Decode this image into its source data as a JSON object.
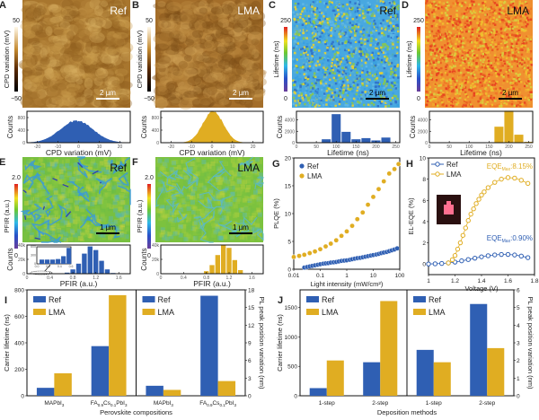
{
  "panels": {
    "A": {
      "letter": "A",
      "label": "Ref",
      "scalebar": "2 µm",
      "cbar_label": "CPD variation (mV)",
      "cbar_max": "50",
      "cbar_min": "−50",
      "palette": "afm"
    },
    "B": {
      "letter": "B",
      "label": "LMA",
      "scalebar": "2 µm",
      "cbar_label": "CPD variation (mV)",
      "cbar_max": "50",
      "cbar_min": "−50",
      "palette": "afm"
    },
    "C": {
      "letter": "C",
      "label": "Ref",
      "scalebar": "2 µm",
      "cbar_label": "Lifetime (ns)",
      "cbar_max": "250",
      "cbar_min": "0",
      "palette": "rainbow"
    },
    "D": {
      "letter": "D",
      "label": "LMA",
      "scalebar": "2 µm",
      "cbar_label": "Lifetime (ns)",
      "cbar_max": "250",
      "cbar_min": "0",
      "palette": "rainbow"
    },
    "E": {
      "letter": "E",
      "label": "Ref",
      "scalebar": "1 µm",
      "cbar_label": "PFIR (a.u.)",
      "cbar_max": "2.0",
      "cbar_min": "0",
      "palette": "rainbow"
    },
    "F": {
      "letter": "F",
      "label": "LMA",
      "scalebar": "1 µm",
      "cbar_label": "PFIR (a.u.)",
      "cbar_max": "2.0",
      "cbar_min": "0",
      "palette": "rainbow"
    },
    "G": {
      "letter": "G"
    },
    "H": {
      "letter": "H"
    },
    "I": {
      "letter": "I"
    },
    "J": {
      "letter": "J"
    }
  },
  "colors": {
    "ref": "#2f5fb3",
    "lma": "#e0ad22"
  },
  "chart_data": [
    {
      "id": "A_hist",
      "type": "histogram",
      "series": "Ref",
      "color": "#2f5fb3",
      "xlabel": "CPD variation (mV)",
      "ylabel": "Counts",
      "xlim": [
        -25,
        25
      ],
      "ylim": [
        0,
        1000
      ],
      "xticks": [
        -20,
        -10,
        0,
        10,
        20
      ],
      "yticks": [
        0,
        400,
        800
      ],
      "distribution": {
        "mean": -1,
        "sd": 8,
        "peak": 700
      }
    },
    {
      "id": "B_hist",
      "type": "histogram",
      "series": "LMA",
      "color": "#e0ad22",
      "xlabel": "CPD variation (mV)",
      "ylabel": "Counts",
      "xlim": [
        -25,
        25
      ],
      "ylim": [
        0,
        1000
      ],
      "xticks": [
        -20,
        -10,
        0,
        10,
        20
      ],
      "yticks": [
        0,
        400,
        800
      ],
      "distribution": {
        "mean": 0.5,
        "sd": 5,
        "peak": 1000
      }
    },
    {
      "id": "C_hist",
      "type": "bar",
      "series": "Ref",
      "color": "#2f5fb3",
      "xlabel": "Lifetime (ns)",
      "ylabel": "Counts",
      "xlim": [
        0,
        260
      ],
      "ylim": [
        0,
        5500
      ],
      "xticks": [
        0,
        50,
        100,
        150,
        200,
        250
      ],
      "yticks": [
        0,
        2000,
        4000
      ],
      "bin_width": 25,
      "x": [
        75,
        100,
        125,
        150,
        175,
        200,
        225
      ],
      "values": [
        600,
        5000,
        1900,
        600,
        800,
        400,
        900
      ]
    },
    {
      "id": "D_hist",
      "type": "bar",
      "series": "LMA",
      "color": "#e0ad22",
      "xlabel": "Lifetime (ns)",
      "ylabel": "Counts",
      "xlim": [
        0,
        260
      ],
      "ylim": [
        0,
        5500
      ],
      "xticks": [
        0,
        50,
        100,
        150,
        200,
        250
      ],
      "yticks": [
        0,
        2000,
        4000
      ],
      "bin_width": 25,
      "x": [
        175,
        200,
        225,
        250
      ],
      "values": [
        2800,
        5600,
        1400,
        150
      ]
    },
    {
      "id": "E_hist",
      "type": "bar",
      "series": "Ref",
      "color": "#2f5fb3",
      "xlabel": "PFIR (a.u.)",
      "ylabel": "Counts",
      "xlim": [
        0,
        1.8
      ],
      "ylim": [
        0,
        40000
      ],
      "xticks": [
        0,
        0.4,
        0.8,
        1.2,
        1.6
      ],
      "xticklabels": [
        "0",
        "0.4",
        "0.8",
        "1.2",
        "1.6"
      ],
      "yticks": [
        0,
        20000,
        40000
      ],
      "yticklabels": [
        "0",
        "20k",
        "40k"
      ],
      "bin_width": 0.1,
      "x": [
        0.7,
        0.8,
        0.9,
        1.0,
        1.1,
        1.2,
        1.3,
        1.4,
        1.5
      ],
      "values": [
        1500,
        6000,
        14000,
        28000,
        38000,
        33000,
        18000,
        6000,
        1000
      ],
      "inset": {
        "xlim": [
          0,
          0.6
        ],
        "ylim": [
          0,
          600
        ],
        "xticks": [
          "0.0",
          "0.2",
          "0.4",
          "0.6"
        ],
        "yticks": [
          "0",
          "300",
          "600"
        ],
        "x": [
          0.1,
          0.2,
          0.3,
          0.4,
          0.5,
          0.6
        ],
        "values": [
          150,
          150,
          150,
          170,
          270,
          560
        ]
      }
    },
    {
      "id": "F_hist",
      "type": "bar",
      "series": "LMA",
      "color": "#e0ad22",
      "xlabel": "PFIR (a.u.)",
      "ylabel": "Counts",
      "xlim": [
        0,
        1.8
      ],
      "ylim": [
        0,
        40000
      ],
      "xticks": [
        0,
        0.4,
        0.8,
        1.2,
        1.6
      ],
      "xticklabels": [
        "0",
        "0.4",
        "0.8",
        "1.2",
        "1.6"
      ],
      "yticks": [
        0,
        20000,
        40000
      ],
      "yticklabels": [
        "0",
        "20k",
        "40k"
      ],
      "bin_width": 0.1,
      "x": [
        0.8,
        0.9,
        1.0,
        1.1,
        1.2,
        1.3,
        1.4
      ],
      "values": [
        3500,
        12000,
        26000,
        40000,
        36000,
        19000,
        5000
      ]
    },
    {
      "id": "G",
      "type": "scatter",
      "title": "",
      "xlabel": "Light intensity (mW/cm²)",
      "ylabel": "PLQE (%)",
      "xscale": "log",
      "xlim": [
        0.01,
        100
      ],
      "ylim": [
        0,
        20
      ],
      "xticks": [
        0.01,
        0.1,
        1,
        10,
        100
      ],
      "xticklabels": [
        "0.01",
        "0.1",
        "1",
        "10",
        "100"
      ],
      "yticks": [
        0,
        5,
        10,
        15,
        20
      ],
      "legend": [
        "Ref",
        "LMA"
      ],
      "legend_position": "top-left",
      "series": [
        {
          "name": "Ref",
          "color": "#2f5fb3",
          "x": [
            0.025,
            0.032,
            0.04,
            0.05,
            0.063,
            0.08,
            0.1,
            0.13,
            0.16,
            0.2,
            0.25,
            0.32,
            0.4,
            0.5,
            0.63,
            0.8,
            1,
            1.3,
            1.6,
            2,
            2.5,
            3.2,
            4,
            5,
            6.3,
            8,
            10,
            13,
            16,
            20,
            25,
            32,
            40,
            50,
            63,
            80
          ],
          "y": [
            0.3,
            0.4,
            0.5,
            0.6,
            0.7,
            0.8,
            0.9,
            1.0,
            1.05,
            1.1,
            1.2,
            1.25,
            1.3,
            1.4,
            1.5,
            1.55,
            1.6,
            1.7,
            1.8,
            1.9,
            2.0,
            2.05,
            2.15,
            2.25,
            2.35,
            2.45,
            2.55,
            2.65,
            2.75,
            2.9,
            3.0,
            3.1,
            3.25,
            3.4,
            3.55,
            3.75
          ]
        },
        {
          "name": "LMA",
          "color": "#e0ad22",
          "x": [
            0.01,
            0.016,
            0.025,
            0.04,
            0.063,
            0.1,
            0.16,
            0.25,
            0.4,
            0.63,
            1,
            1.6,
            2.5,
            4,
            6.3,
            10,
            16,
            25,
            40,
            63,
            90
          ],
          "y": [
            2.2,
            2.4,
            2.6,
            2.9,
            3.2,
            3.6,
            4.1,
            4.6,
            5.2,
            6.0,
            6.8,
            7.8,
            9.0,
            10.2,
            11.6,
            13.0,
            14.4,
            15.8,
            17.2,
            18.0,
            18.9
          ]
        }
      ]
    },
    {
      "id": "H",
      "type": "line",
      "xlabel": "Voltage (V)",
      "ylabel": "EL-EQE (%)",
      "xlim": [
        1,
        1.8
      ],
      "ylim": [
        -1,
        10
      ],
      "xticks": [
        1,
        1.2,
        1.4,
        1.6,
        1.8
      ],
      "yticks": [
        0,
        2,
        4,
        6,
        8,
        10
      ],
      "legend": [
        "Ref",
        "LMA"
      ],
      "legend_position": "top-left",
      "annotations": [
        {
          "text": "EQE",
          "sub": "Max",
          "value": ":8.15%",
          "series": "LMA"
        },
        {
          "text": "EQE",
          "sub": "Max",
          "value": ":0.90%",
          "series": "Ref"
        }
      ],
      "series": [
        {
          "name": "Ref",
          "color": "#2f5fb3",
          "x": [
            1.0,
            1.05,
            1.1,
            1.15,
            1.2,
            1.25,
            1.3,
            1.35,
            1.4,
            1.45,
            1.5,
            1.55,
            1.6,
            1.65,
            1.7,
            1.75
          ],
          "y": [
            0.0,
            0.02,
            0.05,
            0.1,
            0.18,
            0.3,
            0.42,
            0.55,
            0.68,
            0.78,
            0.86,
            0.9,
            0.9,
            0.85,
            0.75,
            0.6
          ]
        },
        {
          "name": "LMA",
          "color": "#e0ad22",
          "x": [
            1.15,
            1.18,
            1.2,
            1.22,
            1.24,
            1.26,
            1.28,
            1.3,
            1.32,
            1.34,
            1.36,
            1.38,
            1.4,
            1.42,
            1.45,
            1.5,
            1.55,
            1.6,
            1.65,
            1.7,
            1.75
          ],
          "y": [
            0.1,
            0.4,
            0.8,
            1.4,
            2.0,
            2.7,
            3.4,
            4.1,
            4.7,
            5.2,
            5.7,
            6.1,
            6.5,
            6.8,
            7.2,
            7.7,
            8.0,
            8.15,
            8.1,
            7.9,
            7.6
          ]
        }
      ]
    },
    {
      "id": "I_left",
      "type": "bar",
      "xlabel": "Perovskite compositions",
      "ylabel": "Carrier lifetime (ns)",
      "ylim": [
        0,
        800
      ],
      "yticks": [
        0,
        200,
        400,
        600,
        800
      ],
      "categories": [
        "MAPbI3",
        "FA0.9Cs0.1PbI3"
      ],
      "legend": [
        "Ref",
        "LMA"
      ],
      "legend_position": "top-left",
      "series": [
        {
          "name": "Ref",
          "color": "#2f5fb3",
          "values": [
            60,
            375
          ]
        },
        {
          "name": "LMA",
          "color": "#e0ad22",
          "values": [
            170,
            760
          ]
        }
      ]
    },
    {
      "id": "I_right",
      "type": "bar",
      "ylabel": "PL peak position variation (nm)",
      "ylim": [
        0,
        18
      ],
      "yticks": [
        0,
        3,
        6,
        9,
        12,
        15,
        18
      ],
      "categories": [
        "MAPbI3",
        "FA0.9Cs0.1PbI3"
      ],
      "legend": [
        "Ref",
        "LMA"
      ],
      "legend_position": "top-left",
      "series": [
        {
          "name": "Ref",
          "color": "#2f5fb3",
          "values": [
            1.7,
            17
          ]
        },
        {
          "name": "LMA",
          "color": "#e0ad22",
          "values": [
            1.0,
            2.5
          ]
        }
      ]
    },
    {
      "id": "J_left",
      "type": "bar",
      "xlabel": "Deposition methods",
      "ylabel": "Carrier lifetime (ns)",
      "ylim": [
        0,
        1800
      ],
      "yticks": [
        0,
        500,
        1000,
        1500
      ],
      "categories": [
        "1-step",
        "2-step"
      ],
      "legend": [
        "Ref",
        "LMA"
      ],
      "legend_position": "top-left",
      "series": [
        {
          "name": "Ref",
          "color": "#2f5fb3",
          "values": [
            130,
            570
          ]
        },
        {
          "name": "LMA",
          "color": "#e0ad22",
          "values": [
            600,
            1610
          ]
        }
      ]
    },
    {
      "id": "J_right",
      "type": "bar",
      "ylabel": "PL peak position variation (nm)",
      "ylim": [
        0,
        6
      ],
      "yticks": [
        0,
        1,
        2,
        3,
        4,
        5,
        6
      ],
      "categories": [
        "1-step",
        "2-step"
      ],
      "legend": [
        "Ref",
        "LMA"
      ],
      "legend_position": "top-left",
      "series": [
        {
          "name": "Ref",
          "color": "#2f5fb3",
          "values": [
            2.6,
            5.2
          ]
        },
        {
          "name": "LMA",
          "color": "#e0ad22",
          "values": [
            1.9,
            2.7
          ]
        }
      ]
    }
  ]
}
